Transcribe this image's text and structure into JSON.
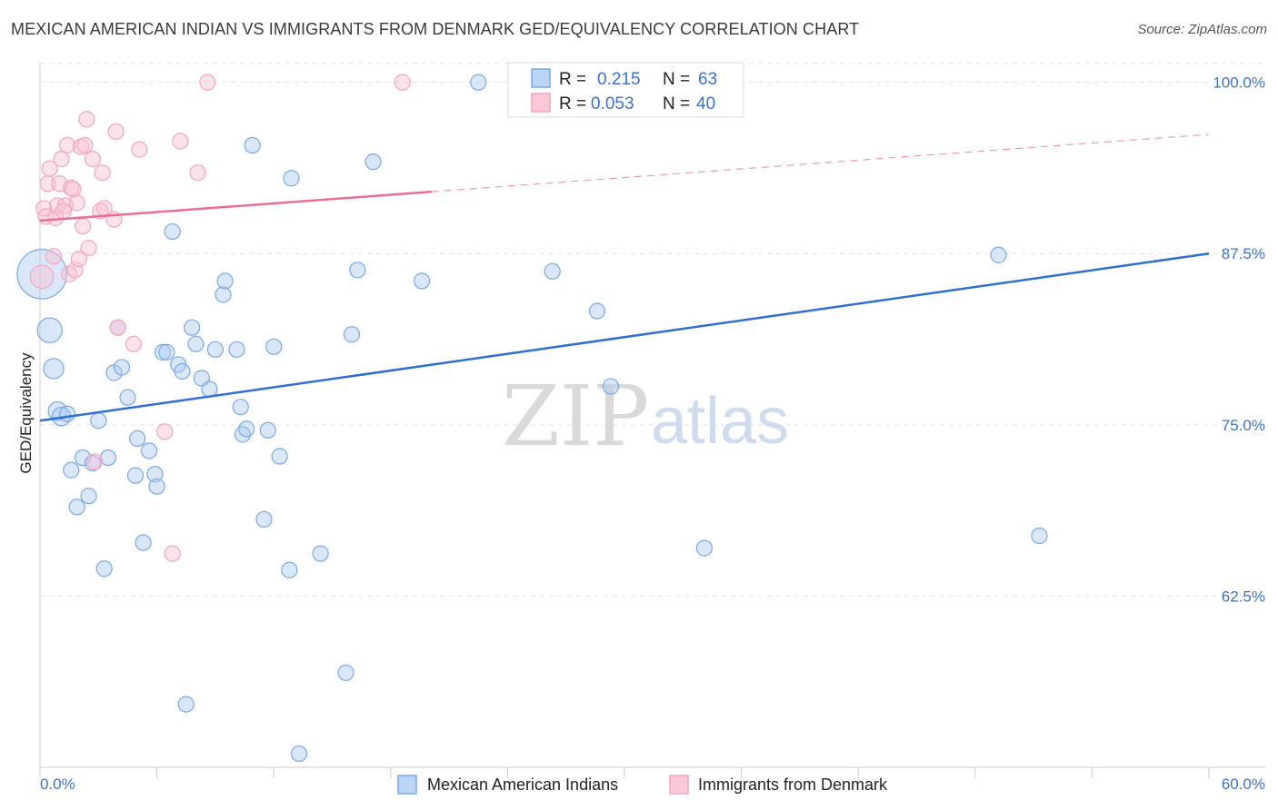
{
  "title": "MEXICAN AMERICAN INDIAN VS IMMIGRANTS FROM DENMARK GED/EQUIVALENCY CORRELATION CHART",
  "source": "Source: ZipAtlas.com",
  "watermark": {
    "zip": "ZIP",
    "atlas": "atlas"
  },
  "chart_data": {
    "type": "scatter",
    "ylabel": "GED/Equivalency",
    "xlim": [
      0,
      60
    ],
    "ylim": [
      50,
      101.5
    ],
    "x_tick_labels": [
      "0.0%",
      "60.0%"
    ],
    "y_ticks": [
      62.5,
      75.0,
      87.5,
      100.0
    ],
    "y_tick_labels": [
      "62.5%",
      "75.0%",
      "87.5%",
      "100.0%"
    ],
    "grid": true,
    "legend_position": "top-center",
    "stats": [
      {
        "r_label": "R =",
        "r": "0.215",
        "n_label": "N =",
        "n": "63"
      },
      {
        "r_label": "R =",
        "r": "0.053",
        "n_label": "N =",
        "n": "40"
      }
    ],
    "series": [
      {
        "name": "Mexican American Indians",
        "color": "#7aaae6",
        "line_color": "#2e6fd0",
        "trend": {
          "x0": 0,
          "y0": 75.3,
          "x1": 60,
          "y1": 87.5,
          "dashed_after": null
        },
        "points": [
          [
            0.1,
            86.0,
            3.2
          ],
          [
            0.5,
            81.9,
            1.6
          ],
          [
            0.7,
            79.1,
            1.3
          ],
          [
            0.9,
            76.0,
            1.2
          ],
          [
            1.1,
            75.6,
            1.2
          ],
          [
            1.4,
            75.8,
            1.0
          ],
          [
            1.6,
            71.7,
            1.0
          ],
          [
            1.9,
            69.0,
            1.0
          ],
          [
            2.2,
            72.6,
            1.0
          ],
          [
            2.5,
            69.8,
            1.0
          ],
          [
            2.7,
            72.2,
            1.0
          ],
          [
            3.0,
            75.3,
            1.0
          ],
          [
            3.3,
            64.5,
            1.0
          ],
          [
            3.5,
            72.6,
            1.0
          ],
          [
            3.8,
            78.8,
            1.0
          ],
          [
            4.0,
            82.1,
            1.0
          ],
          [
            4.2,
            79.2,
            1.0
          ],
          [
            4.5,
            77.0,
            1.0
          ],
          [
            4.9,
            71.3,
            1.0
          ],
          [
            5.0,
            74.0,
            1.0
          ],
          [
            5.3,
            66.4,
            1.0
          ],
          [
            5.6,
            73.1,
            1.0
          ],
          [
            5.9,
            71.4,
            1.0
          ],
          [
            6.0,
            70.5,
            1.0
          ],
          [
            6.3,
            80.3,
            1.0
          ],
          [
            6.5,
            80.3,
            1.0
          ],
          [
            6.8,
            89.1,
            1.0
          ],
          [
            7.1,
            79.4,
            1.0
          ],
          [
            7.3,
            78.9,
            1.0
          ],
          [
            7.5,
            54.6,
            1.0
          ],
          [
            7.8,
            82.1,
            1.0
          ],
          [
            8.0,
            80.9,
            1.0
          ],
          [
            8.3,
            78.4,
            1.0
          ],
          [
            8.7,
            77.6,
            1.0
          ],
          [
            9.0,
            80.5,
            1.0
          ],
          [
            9.4,
            84.5,
            1.0
          ],
          [
            9.5,
            85.5,
            1.0
          ],
          [
            10.1,
            80.5,
            1.0
          ],
          [
            10.3,
            76.3,
            1.0
          ],
          [
            10.4,
            74.3,
            1.0
          ],
          [
            10.6,
            74.7,
            1.0
          ],
          [
            10.9,
            95.4,
            1.0
          ],
          [
            11.5,
            68.1,
            1.0
          ],
          [
            11.7,
            74.6,
            1.0
          ],
          [
            12.0,
            80.7,
            1.0
          ],
          [
            12.3,
            72.7,
            1.0
          ],
          [
            12.8,
            64.4,
            1.0
          ],
          [
            12.9,
            93.0,
            1.0
          ],
          [
            13.3,
            51.0,
            1.0
          ],
          [
            14.4,
            65.6,
            1.0
          ],
          [
            15.7,
            56.9,
            1.0
          ],
          [
            16.0,
            81.6,
            1.0
          ],
          [
            16.3,
            86.3,
            1.0
          ],
          [
            17.1,
            94.2,
            1.0
          ],
          [
            19.6,
            85.5,
            1.0
          ],
          [
            22.5,
            100.0,
            1.0
          ],
          [
            26.3,
            86.2,
            1.0
          ],
          [
            28.6,
            83.3,
            1.0
          ],
          [
            29.3,
            77.8,
            1.0
          ],
          [
            31.5,
            100.0,
            1.0
          ],
          [
            34.1,
            66.0,
            1.0
          ],
          [
            49.2,
            87.4,
            1.0
          ],
          [
            51.3,
            66.9,
            1.0
          ]
        ]
      },
      {
        "name": "Immigrants from Denmark",
        "color": "#f3a6bf",
        "line_color": "#e86e96",
        "trend": {
          "x0": 0,
          "y0": 89.9,
          "x1": 60,
          "y1": 96.2,
          "dashed_after": 20.1
        },
        "points": [
          [
            0.1,
            85.8,
            1.5
          ],
          [
            0.2,
            90.8,
            1.0
          ],
          [
            0.3,
            90.2,
            1.0
          ],
          [
            0.4,
            92.6,
            1.0
          ],
          [
            0.5,
            93.7,
            1.0
          ],
          [
            0.7,
            87.3,
            1.0
          ],
          [
            0.8,
            90.1,
            1.0
          ],
          [
            0.9,
            91.0,
            1.0
          ],
          [
            1.0,
            92.6,
            1.0
          ],
          [
            1.1,
            94.4,
            1.0
          ],
          [
            1.3,
            91.0,
            1.0
          ],
          [
            1.4,
            95.4,
            1.0
          ],
          [
            1.5,
            86.0,
            1.0
          ],
          [
            1.6,
            92.3,
            1.0
          ],
          [
            1.7,
            92.2,
            1.0
          ],
          [
            1.8,
            86.3,
            1.0
          ],
          [
            1.9,
            91.2,
            1.0
          ],
          [
            2.0,
            87.1,
            1.0
          ],
          [
            2.1,
            95.3,
            1.0
          ],
          [
            2.2,
            89.5,
            1.0
          ],
          [
            2.3,
            95.4,
            1.0
          ],
          [
            2.4,
            97.3,
            1.0
          ],
          [
            2.5,
            87.9,
            1.0
          ],
          [
            2.7,
            94.4,
            1.0
          ],
          [
            2.8,
            72.3,
            1.0
          ],
          [
            3.1,
            90.6,
            1.0
          ],
          [
            3.2,
            93.4,
            1.0
          ],
          [
            3.3,
            90.8,
            1.0
          ],
          [
            3.8,
            90.0,
            1.0
          ],
          [
            3.9,
            96.4,
            1.0
          ],
          [
            4.0,
            82.1,
            1.0
          ],
          [
            4.8,
            80.9,
            1.0
          ],
          [
            5.1,
            95.1,
            1.0
          ],
          [
            6.4,
            74.5,
            1.0
          ],
          [
            6.8,
            65.6,
            1.0
          ],
          [
            7.2,
            95.7,
            1.0
          ],
          [
            8.1,
            93.4,
            1.0
          ],
          [
            8.6,
            100.0,
            1.0
          ],
          [
            18.6,
            100.0,
            1.0
          ],
          [
            1.2,
            90.6,
            1.0
          ]
        ]
      }
    ]
  }
}
